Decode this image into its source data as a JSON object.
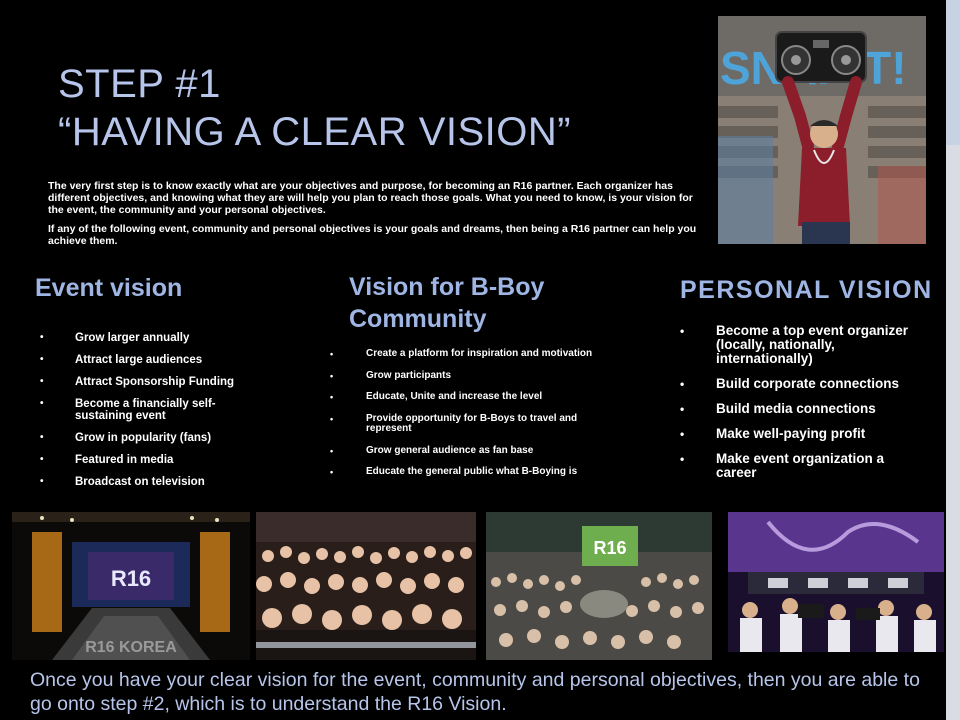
{
  "slide": {
    "title_line1": "STEP #1",
    "title_line2": "“HAVING A CLEAR VISION”",
    "intro_p1": "The very first step is to know exactly what are your objectives and purpose, for becoming an R16 partner. Each organizer has different objectives, and knowing what they are will help you plan to reach those goals. What you need to know, is your vision for the event, the community and your personal objectives.",
    "intro_p2": "If any of the following event, community and personal objectives is your goals and dreams, then being a R16 partner can help you achieve them.",
    "outro": "Once you have your clear vision for the event, community and personal objectives, then you are able to go onto step #2, which is to understand the R16 Vision."
  },
  "event_vision": {
    "heading": "Event vision",
    "items": [
      "Grow larger annually",
      "Attract large audiences",
      "Attract Sponsorship Funding",
      "Become a financially self-sustaining event",
      "Grow in popularity (fans)",
      "Featured in media",
      "Broadcast on television"
    ]
  },
  "community_vision": {
    "heading": "Vision for B-Boy Community",
    "items": [
      "Create a platform for inspiration and motivation",
      "Grow participants",
      "Educate, Unite and increase the level",
      "Provide opportunity for B-Boys to travel and represent",
      "Grow general audience as fan base",
      "Educate the general public what B-Boying is"
    ]
  },
  "personal_vision": {
    "heading": "PERSONAL VISION",
    "items": [
      "Become a top event organizer (locally, nationally, internationally)",
      "Build corporate connections",
      "Build media connections",
      "Make well-paying profit",
      "Make event organization a career"
    ]
  },
  "photos": {
    "hero_sign_text": "SNAP!T!",
    "stage_logo": "R16",
    "stage_banner": "R16 KOREA",
    "crowd_sign": "R16"
  },
  "colors": {
    "background": "#000000",
    "title": "#b7c5ea",
    "heading": "#9fb5e3",
    "body_text": "#ffffff"
  }
}
